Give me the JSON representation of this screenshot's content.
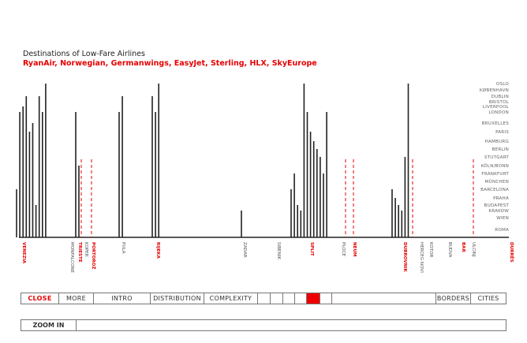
{
  "header": {
    "title": "Destinations of Low-Fare Airlines",
    "subtitle": "RyanAir, Norwegian, Germanwings, EasyJet, Sterling, HLX, SkyEurope"
  },
  "colors": {
    "accent": "#e60000",
    "bar": "#222222",
    "axis": "#222222"
  },
  "chart_data": {
    "type": "bar",
    "origin_cities": [
      "OSLO",
      "KØBENHAVN",
      "DUBLIN",
      "BRISTOL",
      "LIVERPOOL",
      "LONDON",
      "BRUXELLES",
      "PARIS",
      "HAMBURG",
      "BERLIN",
      "STUTGART",
      "KÖLN/BONN",
      "FRANKFURT",
      "MÜNCHEN",
      "BARCELONA",
      "PRAHA",
      "BUDAPEST",
      "KRAKOW",
      "WIEN",
      "ROMA"
    ],
    "destinations": [
      {
        "name": "VENEZIA",
        "red": true
      },
      {
        "name": "MONFALCONE",
        "red": false
      },
      {
        "name": "TRIESTE",
        "red": true
      },
      {
        "name": "KOPER",
        "red": false
      },
      {
        "name": "PORTOROŽ",
        "red": true
      },
      {
        "name": "PULA",
        "red": false
      },
      {
        "name": "RIJEKA",
        "red": true
      },
      {
        "name": "ZADAR",
        "red": false
      },
      {
        "name": "SIBENIK",
        "red": false
      },
      {
        "name": "SPLIT",
        "red": true
      },
      {
        "name": "PLOCE",
        "red": false
      },
      {
        "name": "NEUM",
        "red": true
      },
      {
        "name": "DUBROVNIK",
        "red": true
      },
      {
        "name": "HERCEG NOVI",
        "red": false
      },
      {
        "name": "KOTOR",
        "red": false
      },
      {
        "name": "BUDVA",
        "red": false
      },
      {
        "name": "BAR",
        "red": true
      },
      {
        "name": "ULCINJ",
        "red": false
      },
      {
        "name": "DURRËS",
        "red": true
      }
    ],
    "connections": [
      {
        "destination": "VENEZIA",
        "cities": [
          "BARCELONA",
          "LONDON",
          "LIVERPOOL",
          "DUBLIN",
          "PARIS",
          "BRUXELLES",
          "BUDAPEST",
          "DUBLIN",
          "LONDON",
          "OSLO"
        ]
      },
      {
        "destination": "MONFALCONE",
        "cities": [
          "LONDON"
        ]
      },
      {
        "destination": "TRIESTE",
        "cities": [
          "KÖLN/BONN"
        ]
      },
      {
        "destination": "PULA",
        "cities": [
          "LONDON",
          "DUBLIN"
        ]
      },
      {
        "destination": "RIJEKA",
        "cities": [
          "DUBLIN",
          "LONDON",
          "OSLO"
        ]
      },
      {
        "destination": "ZADAR",
        "cities": [
          "KRAKOW"
        ]
      },
      {
        "destination": "SPLIT",
        "cities": [
          "BARCELONA",
          "FRANKFURT",
          "BUDAPEST",
          "KRAKOW",
          "OSLO",
          "LONDON",
          "PARIS",
          "HAMBURG",
          "BERLIN",
          "STUTGART",
          "FRANKFURT",
          "LONDON"
        ]
      },
      {
        "destination": "DUBROVNIK",
        "cities": [
          "BARCELONA",
          "PRAHA",
          "BUDAPEST",
          "KRAKOW",
          "STUTGART",
          "OSLO"
        ]
      }
    ],
    "dashed_destinations": [
      "TRIESTE",
      "PORTOROŽ",
      "NEUM",
      "DUBROVNIK",
      "BAR"
    ]
  },
  "toolbar": {
    "close": "CLOSE",
    "more": "MORE",
    "intro": "INTRO",
    "distribution": "DISTRIBUTION",
    "complexity": "COMPLEXITY",
    "borders": "BORDERS",
    "cities": "CITIES"
  },
  "zoom": {
    "label": "ZOOM IN"
  }
}
